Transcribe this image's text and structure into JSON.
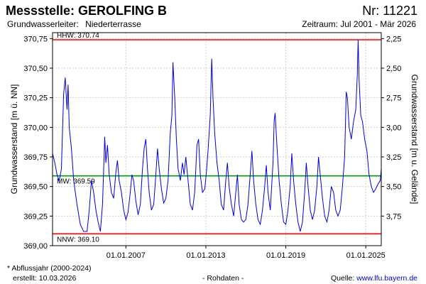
{
  "header": {
    "title": "Messstelle: GEROLFING B",
    "number": "Nr: 11221",
    "aquifer_label": "Grundwasserleiter:",
    "aquifer_value": "Niederterrasse",
    "period": "Zeitraum: Jul 2001 - Mär 2026"
  },
  "footer": {
    "note": "* Abflussjahr (2000-2024)",
    "created": "erstellt:  10.03.2026",
    "rawdata": "- Rohdaten -",
    "source_label": "Quelle: ",
    "source_link": "www.lfu.bayern.de"
  },
  "colors": {
    "series": "#0000dd",
    "hhw": "#ff0000",
    "nnw": "#ff0000",
    "mw": "#009900",
    "grid": "#cfcfcf",
    "link": "#0000cc"
  },
  "chart_data": {
    "type": "line",
    "ylabel": "Grundwasserstand [m ü. NN]",
    "y2label": "Grundwasserstand [m u. Gelände]",
    "ylim": [
      369.0,
      370.8
    ],
    "y_ticks": [
      369.0,
      369.25,
      369.5,
      369.75,
      370.0,
      370.25,
      370.5,
      370.75
    ],
    "y_tick_labels": [
      "369,00",
      "369,25",
      "369,50",
      "369,75",
      "370,00",
      "370,25",
      "370,50",
      "370,75"
    ],
    "y2_ticks": [
      2.25,
      2.5,
      2.75,
      3.0,
      3.25,
      3.5,
      3.75
    ],
    "y2_tick_labels": [
      "2,25",
      "2,50",
      "2,75",
      "3,00",
      "3,25",
      "3,50",
      "3,75"
    ],
    "y2_ref_offset": 373.0,
    "x_range": [
      "2001-07-01",
      "2026-03-01"
    ],
    "x_ticks": [
      "2007-01-01",
      "2013-01-01",
      "2019-01-01",
      "2025-01-01"
    ],
    "x_tick_labels": [
      "01.01.2007",
      "01.01.2013",
      "01.01.2019",
      "01.01.2025"
    ],
    "grid": true,
    "reference_lines": [
      {
        "label": "HHW: 370.74",
        "value": 370.74,
        "color": "#ff0000"
      },
      {
        "label": "MW: 369.59",
        "value": 369.59,
        "color": "#009900"
      },
      {
        "label": "NNW: 369.10",
        "value": 369.1,
        "color": "#ff0000"
      }
    ],
    "series": [
      {
        "color": "#0000dd",
        "points": [
          [
            "2001-07-01",
            369.78
          ],
          [
            "2001-09-01",
            369.7
          ],
          [
            "2001-11-01",
            369.6
          ],
          [
            "2002-01-01",
            369.55
          ],
          [
            "2002-03-01",
            369.65
          ],
          [
            "2002-05-01",
            370.28
          ],
          [
            "2002-06-15",
            370.42
          ],
          [
            "2002-08-01",
            370.15
          ],
          [
            "2002-09-01",
            370.36
          ],
          [
            "2002-10-01",
            370.0
          ],
          [
            "2002-12-01",
            369.82
          ],
          [
            "2003-02-01",
            369.55
          ],
          [
            "2003-05-01",
            369.35
          ],
          [
            "2003-08-01",
            369.18
          ],
          [
            "2003-11-01",
            369.12
          ],
          [
            "2004-02-01",
            369.12
          ],
          [
            "2004-04-01",
            369.3
          ],
          [
            "2004-06-01",
            369.55
          ],
          [
            "2004-08-01",
            369.45
          ],
          [
            "2004-10-01",
            369.3
          ],
          [
            "2004-12-01",
            369.2
          ],
          [
            "2005-02-01",
            369.12
          ],
          [
            "2005-04-01",
            369.35
          ],
          [
            "2005-06-01",
            369.92
          ],
          [
            "2005-07-01",
            369.7
          ],
          [
            "2005-08-15",
            369.85
          ],
          [
            "2005-10-01",
            369.6
          ],
          [
            "2005-12-01",
            369.45
          ],
          [
            "2006-02-01",
            369.4
          ],
          [
            "2006-04-01",
            369.62
          ],
          [
            "2006-05-15",
            369.72
          ],
          [
            "2006-07-01",
            369.55
          ],
          [
            "2006-09-01",
            369.45
          ],
          [
            "2006-11-01",
            369.3
          ],
          [
            "2007-01-01",
            369.22
          ],
          [
            "2007-03-01",
            369.28
          ],
          [
            "2007-05-01",
            369.45
          ],
          [
            "2007-06-15",
            369.6
          ],
          [
            "2007-08-01",
            369.55
          ],
          [
            "2007-10-01",
            369.38
          ],
          [
            "2007-12-01",
            369.26
          ],
          [
            "2008-02-01",
            369.35
          ],
          [
            "2008-04-01",
            369.65
          ],
          [
            "2008-05-15",
            369.82
          ],
          [
            "2008-07-01",
            369.9
          ],
          [
            "2008-08-15",
            369.65
          ],
          [
            "2008-10-01",
            369.45
          ],
          [
            "2008-12-01",
            369.3
          ],
          [
            "2009-02-01",
            369.35
          ],
          [
            "2009-04-01",
            369.6
          ],
          [
            "2009-05-15",
            369.82
          ],
          [
            "2009-07-01",
            369.65
          ],
          [
            "2009-09-01",
            369.48
          ],
          [
            "2009-11-01",
            369.36
          ],
          [
            "2010-01-01",
            369.4
          ],
          [
            "2010-03-01",
            369.55
          ],
          [
            "2010-05-01",
            369.95
          ],
          [
            "2010-06-15",
            370.1
          ],
          [
            "2010-07-15",
            370.55
          ],
          [
            "2010-09-01",
            370.25
          ],
          [
            "2010-10-15",
            369.9
          ],
          [
            "2010-12-01",
            369.65
          ],
          [
            "2011-02-01",
            369.55
          ],
          [
            "2011-04-01",
            369.7
          ],
          [
            "2011-05-15",
            369.6
          ],
          [
            "2011-07-01",
            369.75
          ],
          [
            "2011-09-01",
            369.55
          ],
          [
            "2011-11-01",
            369.35
          ],
          [
            "2012-01-01",
            369.3
          ],
          [
            "2012-03-01",
            369.45
          ],
          [
            "2012-05-01",
            369.85
          ],
          [
            "2012-06-15",
            369.9
          ],
          [
            "2012-08-01",
            369.6
          ],
          [
            "2012-10-01",
            369.45
          ],
          [
            "2012-12-01",
            369.48
          ],
          [
            "2013-01-15",
            369.62
          ],
          [
            "2013-03-01",
            369.8
          ],
          [
            "2013-05-01",
            370.1
          ],
          [
            "2013-06-10",
            370.58
          ],
          [
            "2013-07-15",
            370.25
          ],
          [
            "2013-09-01",
            369.95
          ],
          [
            "2013-11-01",
            369.7
          ],
          [
            "2014-01-01",
            369.55
          ],
          [
            "2014-03-01",
            369.35
          ],
          [
            "2014-05-01",
            369.3
          ],
          [
            "2014-07-01",
            369.55
          ],
          [
            "2014-08-15",
            369.7
          ],
          [
            "2014-10-01",
            369.5
          ],
          [
            "2014-12-01",
            369.35
          ],
          [
            "2015-02-01",
            369.25
          ],
          [
            "2015-04-01",
            369.45
          ],
          [
            "2015-05-15",
            369.6
          ],
          [
            "2015-07-01",
            369.35
          ],
          [
            "2015-09-01",
            369.22
          ],
          [
            "2015-11-01",
            369.2
          ],
          [
            "2016-01-01",
            369.22
          ],
          [
            "2016-03-01",
            369.35
          ],
          [
            "2016-05-01",
            369.6
          ],
          [
            "2016-06-15",
            369.8
          ],
          [
            "2016-08-01",
            369.55
          ],
          [
            "2016-10-01",
            369.35
          ],
          [
            "2016-12-01",
            369.22
          ],
          [
            "2017-02-01",
            369.18
          ],
          [
            "2017-04-01",
            369.3
          ],
          [
            "2017-06-01",
            369.5
          ],
          [
            "2017-07-15",
            369.68
          ],
          [
            "2017-09-01",
            369.45
          ],
          [
            "2017-11-01",
            369.3
          ],
          [
            "2018-01-15",
            369.7
          ],
          [
            "2018-02-15",
            370.05
          ],
          [
            "2018-03-15",
            370.12
          ],
          [
            "2018-05-01",
            369.85
          ],
          [
            "2018-07-01",
            369.55
          ],
          [
            "2018-09-01",
            369.35
          ],
          [
            "2018-11-01",
            369.2
          ],
          [
            "2019-01-01",
            369.18
          ],
          [
            "2019-03-01",
            369.3
          ],
          [
            "2019-05-01",
            369.5
          ],
          [
            "2019-06-15",
            369.78
          ],
          [
            "2019-08-01",
            369.55
          ],
          [
            "2019-10-01",
            369.35
          ],
          [
            "2019-12-01",
            369.2
          ],
          [
            "2020-02-01",
            369.12
          ],
          [
            "2020-04-01",
            369.2
          ],
          [
            "2020-06-01",
            369.45
          ],
          [
            "2020-07-15",
            369.7
          ],
          [
            "2020-09-01",
            369.5
          ],
          [
            "2020-11-01",
            369.3
          ],
          [
            "2021-01-01",
            369.22
          ],
          [
            "2021-03-01",
            369.3
          ],
          [
            "2021-05-01",
            369.5
          ],
          [
            "2021-06-15",
            369.75
          ],
          [
            "2021-08-01",
            369.6
          ],
          [
            "2021-10-01",
            369.4
          ],
          [
            "2021-12-01",
            369.25
          ],
          [
            "2022-02-01",
            369.2
          ],
          [
            "2022-04-01",
            369.3
          ],
          [
            "2022-06-01",
            369.5
          ],
          [
            "2022-08-01",
            369.45
          ],
          [
            "2022-10-01",
            369.3
          ],
          [
            "2022-12-01",
            369.25
          ],
          [
            "2023-02-01",
            369.3
          ],
          [
            "2023-04-01",
            369.5
          ],
          [
            "2023-06-01",
            369.75
          ],
          [
            "2023-07-15",
            370.3
          ],
          [
            "2023-08-15",
            370.25
          ],
          [
            "2023-10-01",
            370.0
          ],
          [
            "2023-12-01",
            369.9
          ],
          [
            "2024-02-01",
            370.05
          ],
          [
            "2024-04-01",
            370.15
          ],
          [
            "2024-05-15",
            370.45
          ],
          [
            "2024-06-05",
            370.74
          ],
          [
            "2024-07-01",
            370.4
          ],
          [
            "2024-08-15",
            370.1
          ],
          [
            "2024-10-01",
            370.05
          ],
          [
            "2024-12-01",
            369.9
          ],
          [
            "2025-02-01",
            369.8
          ],
          [
            "2025-04-01",
            369.6
          ],
          [
            "2025-06-01",
            369.5
          ],
          [
            "2025-08-01",
            369.45
          ],
          [
            "2025-10-01",
            369.48
          ],
          [
            "2025-12-01",
            369.52
          ],
          [
            "2026-02-01",
            369.55
          ],
          [
            "2026-03-01",
            369.65
          ]
        ]
      }
    ]
  }
}
